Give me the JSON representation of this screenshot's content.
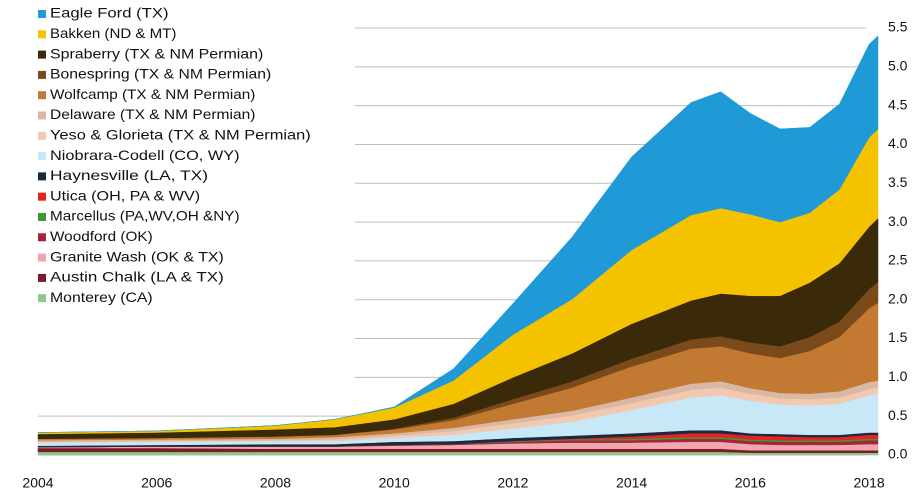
{
  "chart_data": {
    "type": "stacked_area",
    "x": [
      2004,
      2006,
      2008,
      2009,
      2010,
      2011,
      2012,
      2013,
      2014,
      2015,
      2015.5,
      2016,
      2016.5,
      2017,
      2017.5,
      2018,
      2018.15
    ],
    "xlim": [
      2004,
      2018.15
    ],
    "xticks": [
      2004,
      2006,
      2008,
      2010,
      2012,
      2014,
      2016,
      2018
    ],
    "ylim": [
      0,
      5.5
    ],
    "yticks": [
      {
        "value": 0,
        "label": "0.0"
      },
      0.5,
      {
        "value": 1,
        "label": "1.0"
      },
      1.5,
      {
        "value": 2,
        "label": "2.0"
      },
      2.5,
      {
        "value": 3,
        "label": "3.0"
      },
      3.5,
      {
        "value": 4,
        "label": "4.0"
      },
      4.5,
      {
        "value": 5,
        "label": "5.0"
      },
      5.5
    ],
    "grid": true,
    "legend": "upper left",
    "series": [
      {
        "name": "Eagle Ford (TX)",
        "color": "#1f9ad6",
        "values": [
          0,
          0,
          0,
          0,
          0.01,
          0.15,
          0.4,
          0.8,
          1.2,
          1.45,
          1.5,
          1.3,
          1.2,
          1.1,
          1.1,
          1.2,
          1.2
        ]
      },
      {
        "name": "Bakken (ND & MT)",
        "color": "#f5c200",
        "values": [
          0.02,
          0.02,
          0.05,
          0.1,
          0.15,
          0.3,
          0.55,
          0.7,
          0.95,
          1.1,
          1.1,
          1.05,
          0.95,
          0.9,
          0.95,
          1.15,
          1.15
        ]
      },
      {
        "name": "Spraberry (TX & NM Permian)",
        "color": "#3a2a0a",
        "values": [
          0.06,
          0.07,
          0.09,
          0.1,
          0.12,
          0.18,
          0.28,
          0.36,
          0.45,
          0.5,
          0.55,
          0.6,
          0.65,
          0.7,
          0.75,
          0.8,
          0.82
        ]
      },
      {
        "name": "Bonespring (TX & NM Permian)",
        "color": "#7a4a1a",
        "values": [
          0,
          0,
          0,
          0,
          0.01,
          0.03,
          0.06,
          0.08,
          0.1,
          0.12,
          0.13,
          0.14,
          0.15,
          0.18,
          0.2,
          0.25,
          0.27
        ]
      },
      {
        "name": "Wolfcamp (TX & NM Permian)",
        "color": "#c27a32",
        "values": [
          0.02,
          0.02,
          0.03,
          0.03,
          0.05,
          0.1,
          0.2,
          0.3,
          0.4,
          0.45,
          0.45,
          0.45,
          0.45,
          0.55,
          0.7,
          0.95,
          1.0
        ]
      },
      {
        "name": "Delaware (TX & NM Permian)",
        "color": "#d9b8a6",
        "values": [
          0.02,
          0.02,
          0.02,
          0.03,
          0.03,
          0.04,
          0.05,
          0.06,
          0.07,
          0.08,
          0.08,
          0.07,
          0.07,
          0.07,
          0.08,
          0.09,
          0.09
        ]
      },
      {
        "name": "Yeso & Glorieta (TX & NM Permian)",
        "color": "#f2c9ae",
        "values": [
          0.01,
          0.01,
          0.01,
          0.02,
          0.03,
          0.05,
          0.07,
          0.08,
          0.09,
          0.1,
          0.1,
          0.09,
          0.08,
          0.08,
          0.08,
          0.08,
          0.08
        ]
      },
      {
        "name": "Niobrara-Codell (CO, WY)",
        "color": "#c8e8f8",
        "values": [
          0.04,
          0.04,
          0.04,
          0.04,
          0.05,
          0.08,
          0.12,
          0.18,
          0.3,
          0.42,
          0.45,
          0.42,
          0.38,
          0.38,
          0.4,
          0.48,
          0.5
        ]
      },
      {
        "name": "Haynesville (LA, TX)",
        "color": "#1a2a40",
        "values": [
          0.02,
          0.02,
          0.03,
          0.03,
          0.04,
          0.04,
          0.04,
          0.04,
          0.04,
          0.04,
          0.04,
          0.03,
          0.03,
          0.03,
          0.03,
          0.03,
          0.03
        ]
      },
      {
        "name": "Utica (OH, PA & WV)",
        "color": "#e8231e",
        "values": [
          0,
          0,
          0,
          0,
          0,
          0,
          0,
          0.01,
          0.03,
          0.05,
          0.05,
          0.05,
          0.05,
          0.04,
          0.04,
          0.05,
          0.05
        ]
      },
      {
        "name": "Marcellus (PA,WV,OH &NY)",
        "color": "#3a9a3a",
        "values": [
          0,
          0,
          0,
          0,
          0,
          0,
          0.01,
          0.01,
          0.02,
          0.02,
          0.02,
          0.02,
          0.02,
          0.02,
          0.02,
          0.02,
          0.02
        ]
      },
      {
        "name": "Woodford (OK)",
        "color": "#a5243a",
        "values": [
          0,
          0,
          0,
          0,
          0.01,
          0.01,
          0.02,
          0.03,
          0.03,
          0.04,
          0.04,
          0.04,
          0.04,
          0.04,
          0.04,
          0.05,
          0.05
        ]
      },
      {
        "name": "Granite Wash (OK & TX)",
        "color": "#f0a8b0",
        "values": [
          0.01,
          0.02,
          0.03,
          0.03,
          0.04,
          0.05,
          0.07,
          0.08,
          0.08,
          0.09,
          0.09,
          0.08,
          0.07,
          0.07,
          0.07,
          0.08,
          0.08
        ]
      },
      {
        "name": "Austin Chalk (LA & TX)",
        "color": "#7a1a28",
        "values": [
          0.05,
          0.05,
          0.04,
          0.04,
          0.04,
          0.04,
          0.04,
          0.04,
          0.04,
          0.04,
          0.04,
          0.03,
          0.03,
          0.03,
          0.03,
          0.03,
          0.03
        ]
      },
      {
        "name": "Monterey (CA)",
        "color": "#8ec98a",
        "values": [
          0.04,
          0.04,
          0.04,
          0.04,
          0.04,
          0.04,
          0.04,
          0.04,
          0.04,
          0.04,
          0.04,
          0.03,
          0.03,
          0.03,
          0.03,
          0.03,
          0.03
        ]
      }
    ]
  }
}
